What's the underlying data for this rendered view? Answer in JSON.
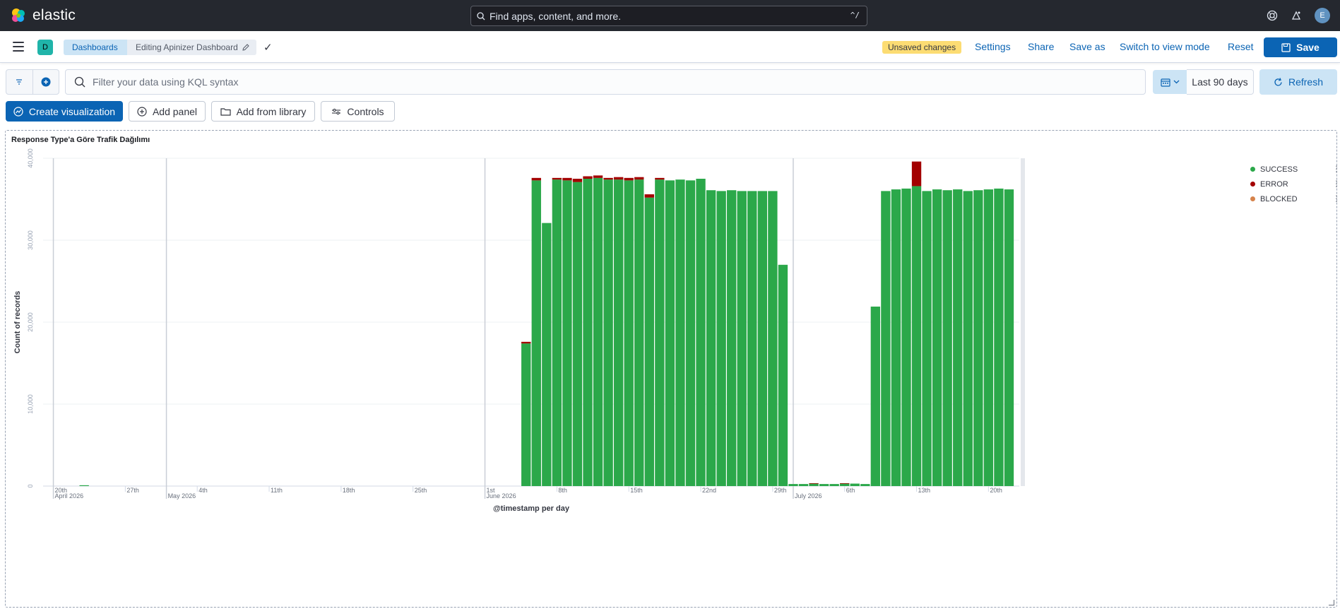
{
  "header": {
    "brand": "elastic",
    "search_placeholder": "Find apps, content, and more.",
    "search_shortcut": "^/",
    "user_initial": "E"
  },
  "appbar": {
    "space_initial": "D",
    "breadcrumbs": [
      "Dashboards",
      "Editing Apinizer Dashboard"
    ],
    "unsaved_badge": "Unsaved changes",
    "links": [
      "Settings",
      "Share",
      "Save as",
      "Switch to view mode",
      "Reset"
    ],
    "save_label": "Save"
  },
  "query": {
    "kql_placeholder": "Filter your data using KQL syntax",
    "date_range": "Last 90 days",
    "refresh_label": "Refresh"
  },
  "toolbar": {
    "create_label": "Create visualization",
    "add_panel_label": "Add panel",
    "add_library_label": "Add from library",
    "controls_label": "Controls"
  },
  "panel": {
    "title": "Response Type'a Göre Trafik Dağılımı"
  },
  "colors": {
    "success": "#2ba84a",
    "error": "#a30000",
    "blocked": "#d6834b",
    "accent": "#0b64b4"
  },
  "chart_data": {
    "type": "bar",
    "stacked": true,
    "title": "Response Type'a Göre Trafik Dağılımı",
    "xlabel": "@timestamp per day",
    "ylabel": "Count of records",
    "ylim": [
      0,
      40000
    ],
    "y_ticks": [
      "0",
      "10,000",
      "20,000",
      "30,000",
      "40,000"
    ],
    "x_ticks": [
      {
        "date": "2026-04-20",
        "label": "20th",
        "sub": "April 2026"
      },
      {
        "date": "2026-04-27",
        "label": "27th",
        "sub": ""
      },
      {
        "date": "2026-05-01",
        "label": "",
        "sub": "May 2026"
      },
      {
        "date": "2026-05-04",
        "label": "4th",
        "sub": ""
      },
      {
        "date": "2026-05-11",
        "label": "11th",
        "sub": ""
      },
      {
        "date": "2026-05-18",
        "label": "18th",
        "sub": ""
      },
      {
        "date": "2026-05-25",
        "label": "25th",
        "sub": ""
      },
      {
        "date": "2026-06-01",
        "label": "1st",
        "sub": "June 2026"
      },
      {
        "date": "2026-06-08",
        "label": "8th",
        "sub": ""
      },
      {
        "date": "2026-06-15",
        "label": "15th",
        "sub": ""
      },
      {
        "date": "2026-06-22",
        "label": "22nd",
        "sub": ""
      },
      {
        "date": "2026-06-29",
        "label": "29th",
        "sub": ""
      },
      {
        "date": "2026-07-01",
        "label": "",
        "sub": "July 2026"
      },
      {
        "date": "2026-07-06",
        "label": "6th",
        "sub": ""
      },
      {
        "date": "2026-07-13",
        "label": "13th",
        "sub": ""
      },
      {
        "date": "2026-07-20",
        "label": "20th",
        "sub": ""
      }
    ],
    "legend_position": "top-right",
    "series_names": [
      "SUCCESS",
      "ERROR",
      "BLOCKED"
    ],
    "x": [
      "2026-04-23",
      "2026-06-05",
      "2026-06-06",
      "2026-06-07",
      "2026-06-08",
      "2026-06-09",
      "2026-06-10",
      "2026-06-11",
      "2026-06-12",
      "2026-06-13",
      "2026-06-14",
      "2026-06-15",
      "2026-06-16",
      "2026-06-17",
      "2026-06-18",
      "2026-06-19",
      "2026-06-20",
      "2026-06-21",
      "2026-06-22",
      "2026-06-23",
      "2026-06-24",
      "2026-06-25",
      "2026-06-26",
      "2026-06-27",
      "2026-06-28",
      "2026-06-29",
      "2026-06-30",
      "2026-07-01",
      "2026-07-02",
      "2026-07-03",
      "2026-07-04",
      "2026-07-05",
      "2026-07-06",
      "2026-07-07",
      "2026-07-08",
      "2026-07-09",
      "2026-07-10",
      "2026-07-11",
      "2026-07-12",
      "2026-07-13",
      "2026-07-14",
      "2026-07-15",
      "2026-07-16",
      "2026-07-17",
      "2026-07-18",
      "2026-07-19",
      "2026-07-20",
      "2026-07-21",
      "2026-07-22"
    ],
    "series": [
      {
        "name": "SUCCESS",
        "values": [
          100,
          17400,
          37300,
          32100,
          37400,
          37300,
          37100,
          37500,
          37600,
          37400,
          37400,
          37300,
          37400,
          35200,
          37400,
          37300,
          37400,
          37300,
          37500,
          36100,
          36000,
          36100,
          36000,
          36000,
          36000,
          36000,
          27000,
          250,
          250,
          300,
          250,
          250,
          300,
          300,
          250,
          21900,
          36000,
          36200,
          36300,
          36600,
          36000,
          36200,
          36100,
          36200,
          36000,
          36100,
          36200,
          36300,
          36200
        ]
      },
      {
        "name": "ERROR",
        "values": [
          0,
          200,
          300,
          0,
          200,
          300,
          400,
          300,
          300,
          200,
          300,
          300,
          300,
          400,
          200,
          0,
          0,
          0,
          0,
          0,
          0,
          0,
          0,
          0,
          0,
          0,
          0,
          0,
          0,
          50,
          0,
          0,
          50,
          0,
          0,
          0,
          0,
          0,
          0,
          3000,
          0,
          0,
          0,
          0,
          0,
          0,
          0,
          0,
          0
        ]
      },
      {
        "name": "BLOCKED",
        "values": [
          0,
          0,
          0,
          0,
          0,
          0,
          0,
          0,
          0,
          0,
          0,
          0,
          0,
          0,
          0,
          0,
          0,
          0,
          0,
          0,
          0,
          0,
          0,
          0,
          0,
          0,
          0,
          0,
          0,
          0,
          0,
          0,
          0,
          0,
          0,
          0,
          0,
          0,
          0,
          0,
          0,
          0,
          0,
          0,
          0,
          0,
          0,
          0,
          0
        ]
      }
    ]
  }
}
